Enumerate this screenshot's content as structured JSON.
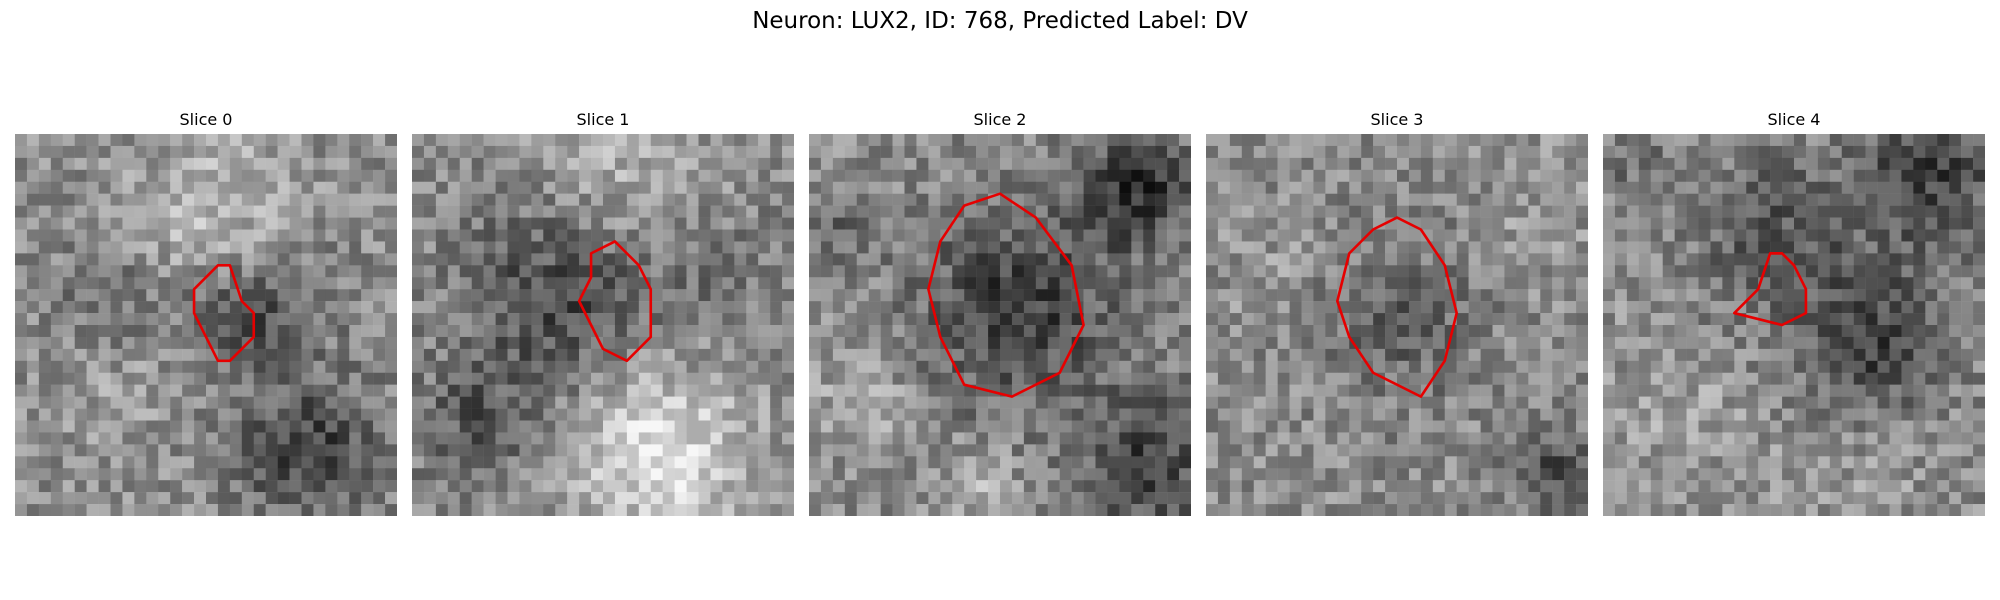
{
  "figure": {
    "title": "Neuron: LUX2, ID: 768, Predicted Label: DV"
  },
  "panels": [
    {
      "title": "Slice 0",
      "contour": [
        [
          17,
          11
        ],
        [
          15,
          13
        ],
        [
          15,
          15
        ],
        [
          16,
          17
        ],
        [
          17,
          19
        ],
        [
          18,
          19
        ],
        [
          20,
          17
        ],
        [
          20,
          15
        ],
        [
          19,
          14
        ],
        [
          18,
          11
        ]
      ]
    },
    {
      "title": "Slice 1",
      "contour": [
        [
          17,
          9
        ],
        [
          15,
          10
        ],
        [
          15,
          12
        ],
        [
          14,
          14
        ],
        [
          15,
          16
        ],
        [
          16,
          18
        ],
        [
          18,
          19
        ],
        [
          20,
          17
        ],
        [
          20,
          13
        ],
        [
          19,
          11
        ],
        [
          18,
          10
        ]
      ]
    },
    {
      "title": "Slice 2",
      "contour": [
        [
          13,
          6
        ],
        [
          11,
          9
        ],
        [
          10,
          13
        ],
        [
          11,
          17
        ],
        [
          13,
          21
        ],
        [
          17,
          22
        ],
        [
          21,
          20
        ],
        [
          23,
          16
        ],
        [
          22,
          11
        ],
        [
          19,
          7
        ],
        [
          16,
          5
        ]
      ]
    },
    {
      "title": "Slice 3",
      "contour": [
        [
          14,
          8
        ],
        [
          12,
          10
        ],
        [
          11,
          14
        ],
        [
          12,
          17
        ],
        [
          14,
          20
        ],
        [
          18,
          22
        ],
        [
          20,
          19
        ],
        [
          21,
          15
        ],
        [
          20,
          11
        ],
        [
          18,
          8
        ],
        [
          16,
          7
        ]
      ]
    },
    {
      "title": "Slice 4",
      "contour": [
        [
          14,
          10
        ],
        [
          13,
          13
        ],
        [
          11,
          15
        ],
        [
          15,
          16
        ],
        [
          17,
          15
        ],
        [
          17,
          13
        ],
        [
          16,
          11
        ],
        [
          15,
          10
        ]
      ]
    }
  ]
}
